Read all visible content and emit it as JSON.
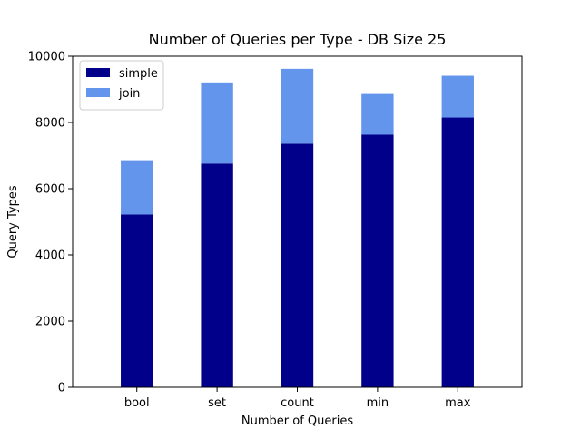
{
  "chart_data": {
    "type": "bar",
    "stacked": true,
    "title": "Number of Queries per Type - DB Size 25",
    "xlabel": "Number of Queries",
    "ylabel": "Query Types",
    "categories": [
      "bool",
      "set",
      "count",
      "min",
      "max"
    ],
    "series": [
      {
        "name": "simple",
        "color": "#00008b",
        "values": [
          5220,
          6760,
          7360,
          7630,
          8150
        ]
      },
      {
        "name": "join",
        "color": "#6495ed",
        "values": [
          1640,
          2450,
          2260,
          1230,
          1260
        ]
      }
    ],
    "ylim": [
      0,
      10000
    ],
    "yticks": [
      0,
      2000,
      4000,
      6000,
      8000,
      10000
    ],
    "legend_position": "top-left",
    "grid": false
  }
}
